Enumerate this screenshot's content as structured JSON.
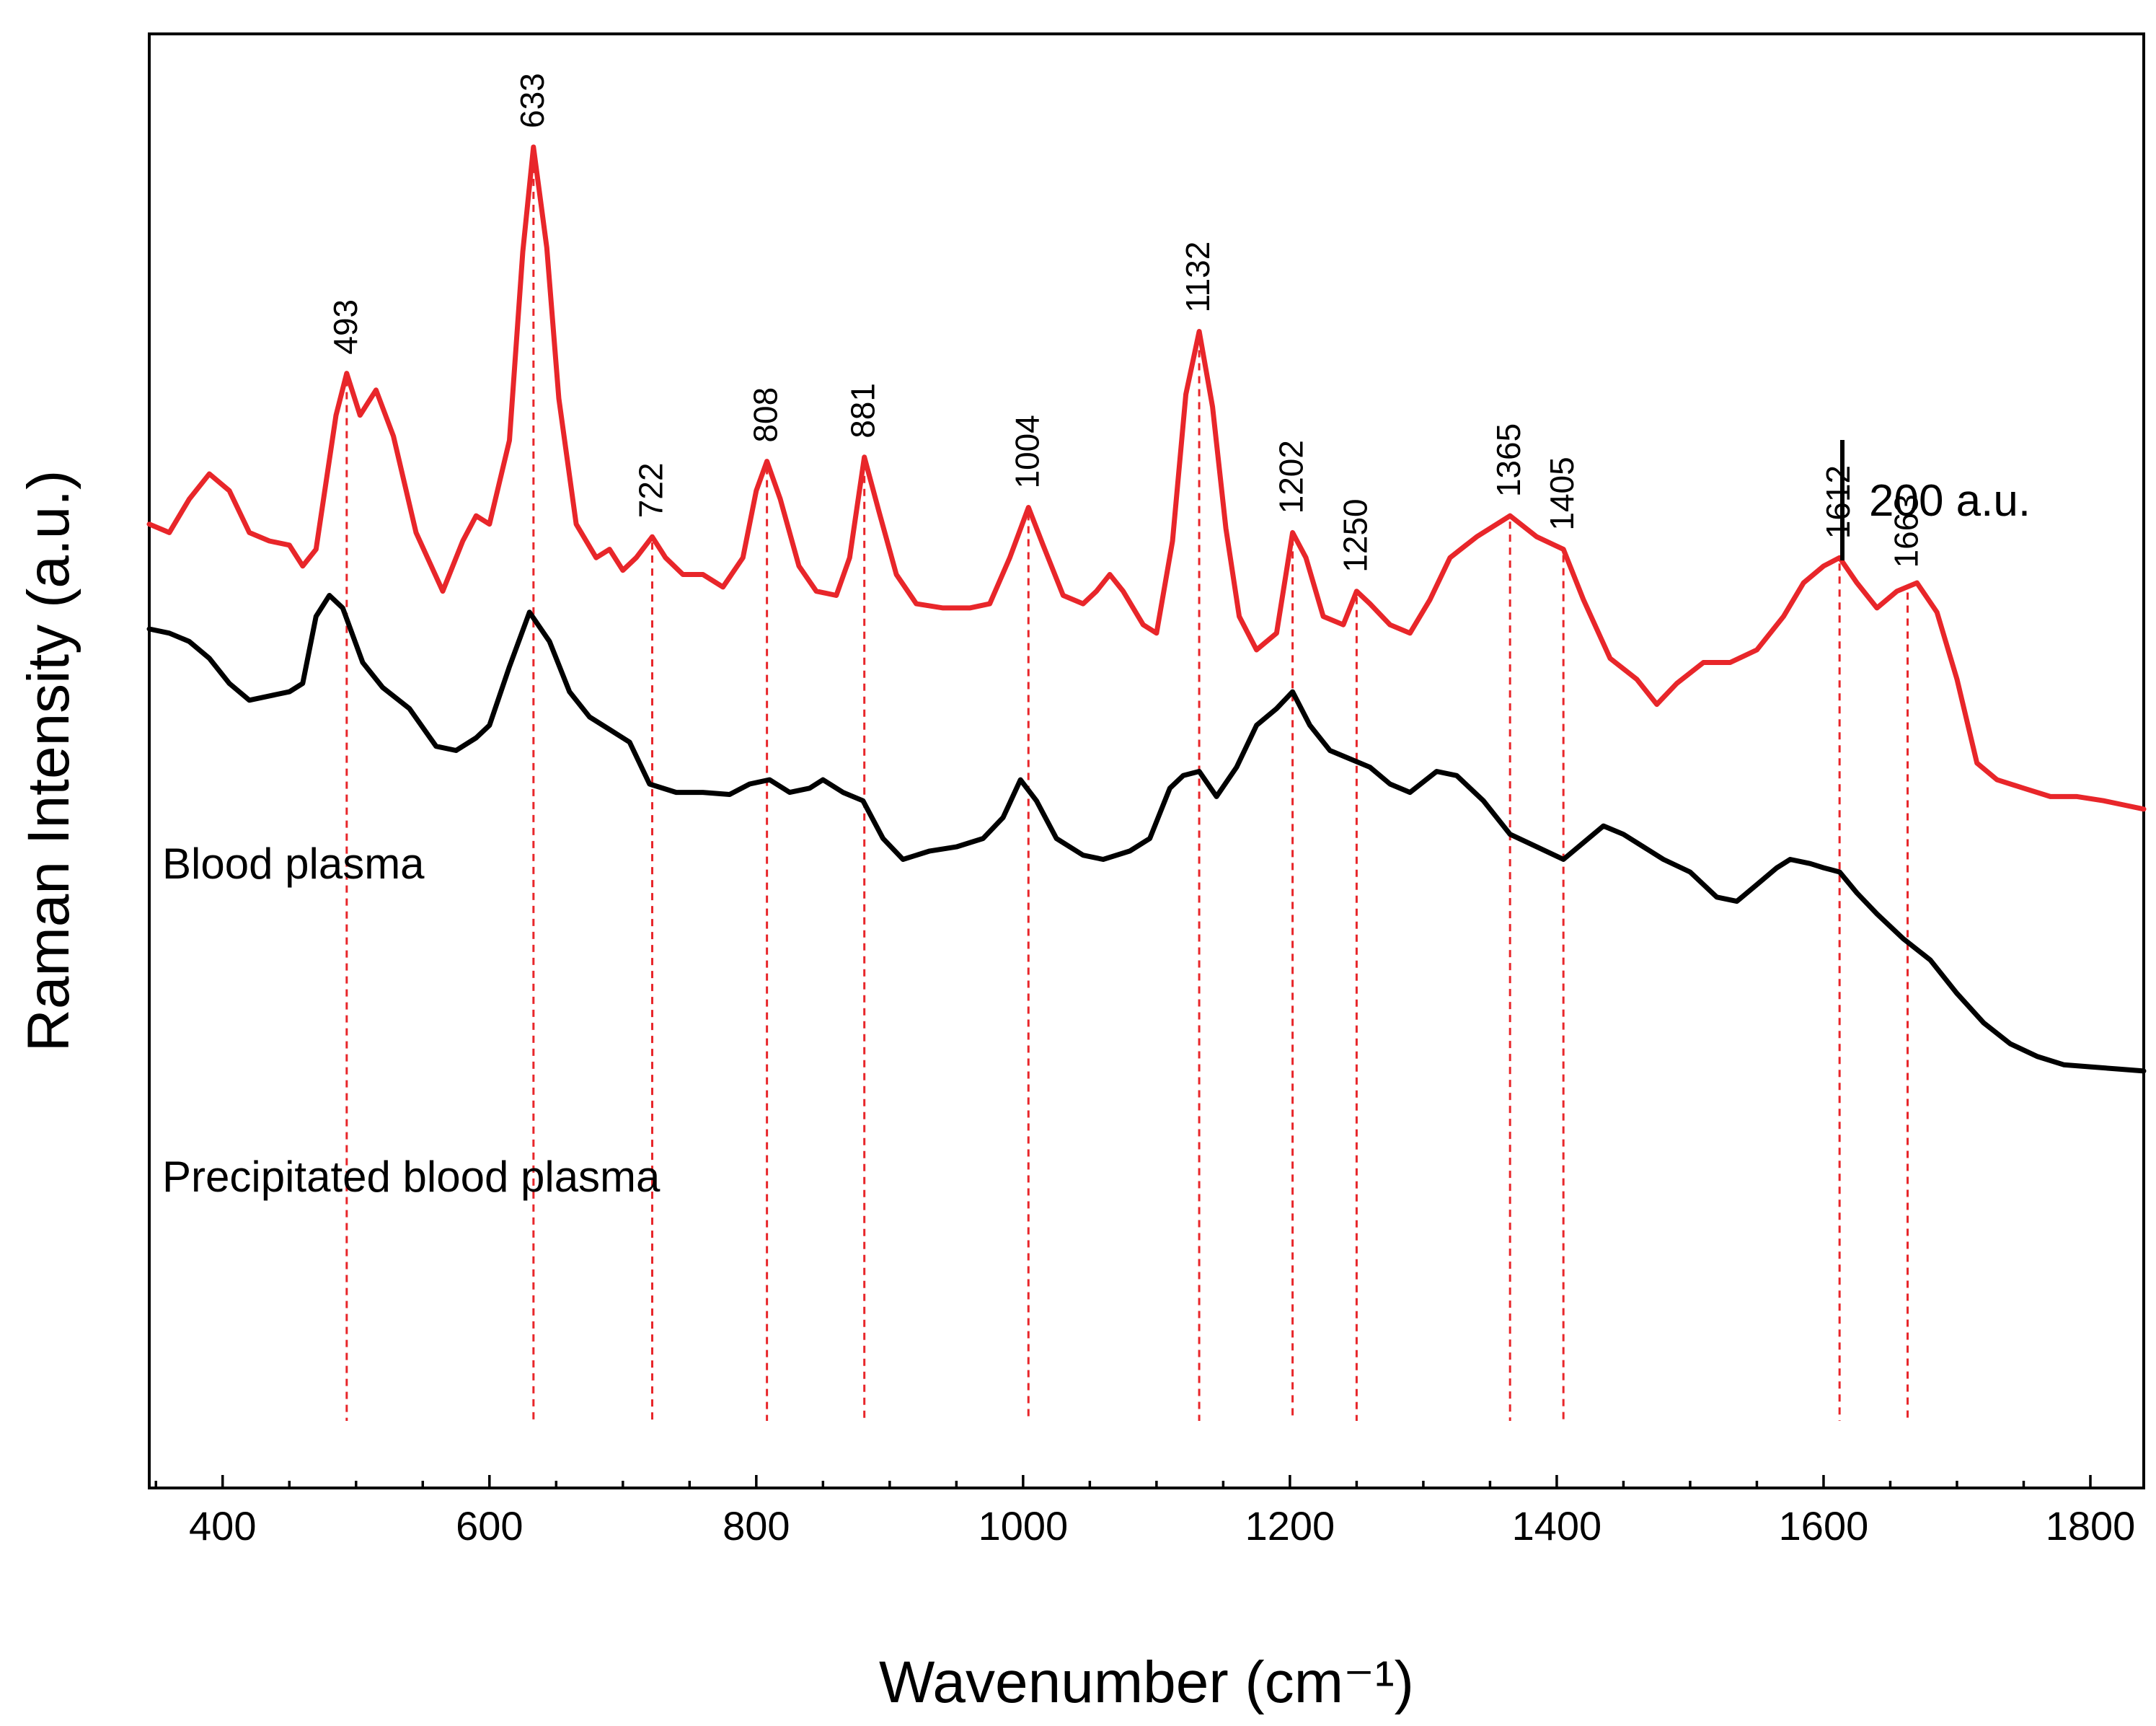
{
  "chart_data": {
    "type": "line",
    "title": "",
    "xlabel": "Wavenumber (cm⁻¹)",
    "ylabel": "Raman Intensity (a.u.)",
    "xlim": [
      345,
      1840
    ],
    "ylim": [
      -1800,
      1670
    ],
    "x_ticks": [
      400,
      600,
      800,
      1000,
      1200,
      1400,
      1600,
      1800
    ],
    "grid": false,
    "scale_bar": {
      "label": "200 a.u.",
      "value": 200
    },
    "colors": {
      "blood_plasma": "#e8262a",
      "precipitated": "#000000",
      "peak_lines": "#e8262a"
    },
    "series": [
      {
        "name": "Blood plasma",
        "color": "#e8262a",
        "points": [
          [
            345,
            500
          ],
          [
            360,
            480
          ],
          [
            375,
            560
          ],
          [
            390,
            620
          ],
          [
            405,
            580
          ],
          [
            420,
            480
          ],
          [
            435,
            460
          ],
          [
            450,
            450
          ],
          [
            460,
            400
          ],
          [
            470,
            440
          ],
          [
            485,
            760
          ],
          [
            493,
            860
          ],
          [
            503,
            760
          ],
          [
            515,
            820
          ],
          [
            528,
            710
          ],
          [
            545,
            480
          ],
          [
            565,
            340
          ],
          [
            580,
            460
          ],
          [
            590,
            520
          ],
          [
            600,
            500
          ],
          [
            615,
            700
          ],
          [
            625,
            1150
          ],
          [
            633,
            1400
          ],
          [
            643,
            1160
          ],
          [
            652,
            800
          ],
          [
            665,
            500
          ],
          [
            680,
            420
          ],
          [
            690,
            440
          ],
          [
            700,
            390
          ],
          [
            710,
            420
          ],
          [
            722,
            470
          ],
          [
            732,
            420
          ],
          [
            745,
            380
          ],
          [
            760,
            380
          ],
          [
            775,
            350
          ],
          [
            790,
            420
          ],
          [
            800,
            580
          ],
          [
            808,
            650
          ],
          [
            818,
            560
          ],
          [
            832,
            400
          ],
          [
            845,
            340
          ],
          [
            860,
            330
          ],
          [
            870,
            420
          ],
          [
            881,
            660
          ],
          [
            892,
            530
          ],
          [
            905,
            380
          ],
          [
            920,
            310
          ],
          [
            940,
            300
          ],
          [
            960,
            300
          ],
          [
            975,
            310
          ],
          [
            990,
            420
          ],
          [
            1004,
            540
          ],
          [
            1015,
            450
          ],
          [
            1030,
            330
          ],
          [
            1045,
            310
          ],
          [
            1055,
            340
          ],
          [
            1065,
            380
          ],
          [
            1075,
            340
          ],
          [
            1090,
            260
          ],
          [
            1100,
            240
          ],
          [
            1112,
            460
          ],
          [
            1122,
            810
          ],
          [
            1132,
            960
          ],
          [
            1142,
            780
          ],
          [
            1152,
            490
          ],
          [
            1162,
            280
          ],
          [
            1175,
            200
          ],
          [
            1190,
            240
          ],
          [
            1202,
            480
          ],
          [
            1212,
            420
          ],
          [
            1225,
            280
          ],
          [
            1240,
            260
          ],
          [
            1250,
            340
          ],
          [
            1260,
            310
          ],
          [
            1275,
            260
          ],
          [
            1290,
            240
          ],
          [
            1305,
            320
          ],
          [
            1320,
            420
          ],
          [
            1340,
            470
          ],
          [
            1365,
            520
          ],
          [
            1385,
            470
          ],
          [
            1405,
            440
          ],
          [
            1420,
            320
          ],
          [
            1440,
            180
          ],
          [
            1460,
            130
          ],
          [
            1475,
            70
          ],
          [
            1490,
            120
          ],
          [
            1510,
            170
          ],
          [
            1530,
            170
          ],
          [
            1550,
            200
          ],
          [
            1570,
            280
          ],
          [
            1585,
            360
          ],
          [
            1600,
            400
          ],
          [
            1612,
            420
          ],
          [
            1625,
            360
          ],
          [
            1640,
            300
          ],
          [
            1655,
            340
          ],
          [
            1670,
            360
          ],
          [
            1685,
            290
          ],
          [
            1700,
            130
          ],
          [
            1715,
            -70
          ],
          [
            1730,
            -110
          ],
          [
            1750,
            -130
          ],
          [
            1770,
            -150
          ],
          [
            1790,
            -150
          ],
          [
            1810,
            -160
          ],
          [
            1825,
            -170
          ],
          [
            1840,
            -180
          ]
        ]
      },
      {
        "name": "Precipitated blood plasma",
        "color": "#000000",
        "points": [
          [
            345,
            250
          ],
          [
            360,
            240
          ],
          [
            375,
            220
          ],
          [
            390,
            180
          ],
          [
            405,
            120
          ],
          [
            420,
            80
          ],
          [
            435,
            90
          ],
          [
            450,
            100
          ],
          [
            460,
            120
          ],
          [
            470,
            280
          ],
          [
            480,
            330
          ],
          [
            490,
            300
          ],
          [
            505,
            170
          ],
          [
            520,
            110
          ],
          [
            540,
            60
          ],
          [
            560,
            -30
          ],
          [
            575,
            -40
          ],
          [
            590,
            -10
          ],
          [
            600,
            20
          ],
          [
            615,
            160
          ],
          [
            630,
            290
          ],
          [
            645,
            220
          ],
          [
            660,
            100
          ],
          [
            675,
            40
          ],
          [
            690,
            10
          ],
          [
            705,
            -20
          ],
          [
            720,
            -120
          ],
          [
            740,
            -140
          ],
          [
            760,
            -140
          ],
          [
            780,
            -145
          ],
          [
            795,
            -120
          ],
          [
            810,
            -110
          ],
          [
            825,
            -140
          ],
          [
            840,
            -130
          ],
          [
            850,
            -110
          ],
          [
            865,
            -140
          ],
          [
            880,
            -160
          ],
          [
            895,
            -250
          ],
          [
            910,
            -300
          ],
          [
            930,
            -280
          ],
          [
            950,
            -270
          ],
          [
            970,
            -250
          ],
          [
            985,
            -200
          ],
          [
            998,
            -110
          ],
          [
            1010,
            -160
          ],
          [
            1025,
            -250
          ],
          [
            1045,
            -290
          ],
          [
            1060,
            -300
          ],
          [
            1080,
            -280
          ],
          [
            1095,
            -250
          ],
          [
            1110,
            -130
          ],
          [
            1120,
            -100
          ],
          [
            1132,
            -90
          ],
          [
            1145,
            -150
          ],
          [
            1160,
            -80
          ],
          [
            1175,
            20
          ],
          [
            1190,
            60
          ],
          [
            1202,
            100
          ],
          [
            1215,
            20
          ],
          [
            1230,
            -40
          ],
          [
            1245,
            -60
          ],
          [
            1260,
            -80
          ],
          [
            1275,
            -120
          ],
          [
            1290,
            -140
          ],
          [
            1310,
            -90
          ],
          [
            1325,
            -100
          ],
          [
            1345,
            -160
          ],
          [
            1365,
            -240
          ],
          [
            1385,
            -270
          ],
          [
            1405,
            -300
          ],
          [
            1420,
            -260
          ],
          [
            1435,
            -220
          ],
          [
            1450,
            -240
          ],
          [
            1465,
            -270
          ],
          [
            1480,
            -300
          ],
          [
            1500,
            -330
          ],
          [
            1520,
            -390
          ],
          [
            1535,
            -400
          ],
          [
            1550,
            -360
          ],
          [
            1565,
            -320
          ],
          [
            1575,
            -300
          ],
          [
            1590,
            -310
          ],
          [
            1600,
            -320
          ],
          [
            1612,
            -330
          ],
          [
            1625,
            -380
          ],
          [
            1640,
            -430
          ],
          [
            1660,
            -490
          ],
          [
            1680,
            -540
          ],
          [
            1700,
            -620
          ],
          [
            1720,
            -690
          ],
          [
            1740,
            -740
          ],
          [
            1760,
            -770
          ],
          [
            1780,
            -790
          ],
          [
            1800,
            -795
          ],
          [
            1820,
            -800
          ],
          [
            1840,
            -805
          ]
        ]
      }
    ],
    "peaks": [
      {
        "label": "493",
        "x": 493
      },
      {
        "label": "633",
        "x": 633
      },
      {
        "label": "722",
        "x": 722
      },
      {
        "label": "808",
        "x": 808
      },
      {
        "label": "881",
        "x": 881
      },
      {
        "label": "1004",
        "x": 1004
      },
      {
        "label": "1132",
        "x": 1132
      },
      {
        "label": "1202",
        "x": 1202
      },
      {
        "label": "1250",
        "x": 1250
      },
      {
        "label": "1365",
        "x": 1365
      },
      {
        "label": "1405",
        "x": 1405
      },
      {
        "label": "1612",
        "x": 1612
      },
      {
        "label": "1663",
        "x": 1663
      }
    ],
    "peak_line_bottom": -1640
  }
}
